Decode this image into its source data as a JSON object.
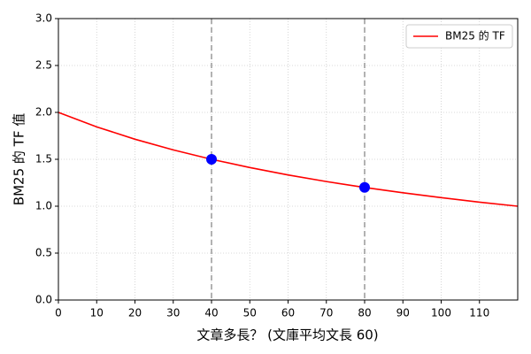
{
  "chart_data": {
    "type": "line",
    "xlabel": "文章多長？ (文庫平均文長 60)",
    "ylabel": "BM25 的 TF 值",
    "x": [
      0,
      10,
      20,
      30,
      40,
      50,
      60,
      70,
      80,
      90,
      100,
      110,
      120
    ],
    "series": [
      {
        "name": "BM25 的 TF",
        "color": "#ff0000",
        "values": [
          2.0,
          1.846,
          1.714,
          1.6,
          1.5,
          1.412,
          1.333,
          1.263,
          1.2,
          1.143,
          1.091,
          1.043,
          1.0
        ]
      }
    ],
    "points": {
      "x": [
        40,
        80
      ],
      "values": [
        1.5,
        1.2
      ],
      "color": "#0000ff"
    },
    "vlines": [
      40,
      80
    ],
    "xlim": [
      0,
      120
    ],
    "ylim": [
      0,
      3
    ],
    "xticks": [
      0,
      10,
      20,
      30,
      40,
      50,
      60,
      70,
      80,
      90,
      100,
      110
    ],
    "yticks": [
      {
        "value": 0,
        "label": "0.0"
      },
      {
        "value": 0.5,
        "label": "0.5"
      },
      {
        "value": 1,
        "label": "1.0"
      },
      {
        "value": 1.5,
        "label": "1.5"
      },
      {
        "value": 2,
        "label": "2.0"
      },
      {
        "value": 2.5,
        "label": "2.5"
      },
      {
        "value": 3,
        "label": "3.0"
      }
    ],
    "grid": true,
    "legend": "upper right"
  }
}
